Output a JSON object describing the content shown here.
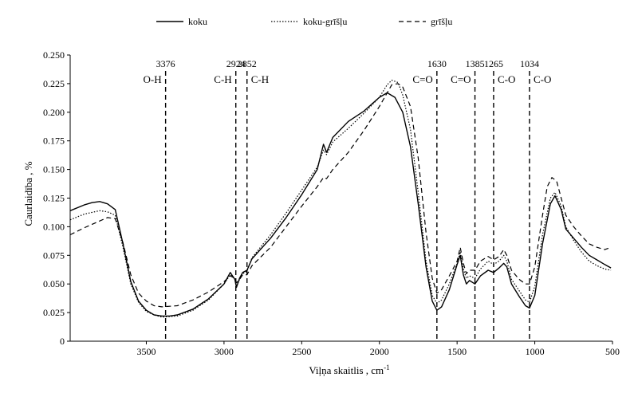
{
  "chart_data": {
    "type": "line",
    "xlabel": "Viļņa skaitlis , cm",
    "xlabel_sup": "-1",
    "ylabel": "Caurlaidība , %",
    "xlim": [
      3990,
      500
    ],
    "x_reversed": true,
    "ylim": [
      0,
      0.25
    ],
    "x_ticks": [
      3500,
      3000,
      2500,
      2000,
      1500,
      1000,
      500
    ],
    "y_ticks": [
      0,
      0.025,
      0.05,
      0.075,
      0.1,
      0.125,
      0.15,
      0.175,
      0.2,
      0.225,
      0.25
    ],
    "y_tick_labels": [
      "0",
      "0.025",
      "0.050",
      "0.075",
      "0.100",
      "0.125",
      "0.150",
      "0.175",
      "0.200",
      "0.225",
      "0.250"
    ],
    "grid": false,
    "legend_position": "top",
    "series": [
      {
        "name": "koku",
        "style": "solid",
        "points": [
          [
            3990,
            0.114
          ],
          [
            3900,
            0.119
          ],
          [
            3850,
            0.121
          ],
          [
            3800,
            0.122
          ],
          [
            3750,
            0.12
          ],
          [
            3700,
            0.115
          ],
          [
            3650,
            0.085
          ],
          [
            3600,
            0.052
          ],
          [
            3550,
            0.035
          ],
          [
            3500,
            0.027
          ],
          [
            3450,
            0.023
          ],
          [
            3400,
            0.022
          ],
          [
            3350,
            0.022
          ],
          [
            3300,
            0.023
          ],
          [
            3200,
            0.028
          ],
          [
            3100,
            0.037
          ],
          [
            3000,
            0.05
          ],
          [
            2960,
            0.06
          ],
          [
            2930,
            0.054
          ],
          [
            2920,
            0.047
          ],
          [
            2900,
            0.055
          ],
          [
            2880,
            0.06
          ],
          [
            2852,
            0.062
          ],
          [
            2820,
            0.072
          ],
          [
            2700,
            0.09
          ],
          [
            2600,
            0.108
          ],
          [
            2500,
            0.128
          ],
          [
            2400,
            0.15
          ],
          [
            2360,
            0.172
          ],
          [
            2340,
            0.165
          ],
          [
            2300,
            0.178
          ],
          [
            2200,
            0.192
          ],
          [
            2100,
            0.201
          ],
          [
            2000,
            0.213
          ],
          [
            1950,
            0.217
          ],
          [
            1900,
            0.213
          ],
          [
            1850,
            0.2
          ],
          [
            1800,
            0.17
          ],
          [
            1750,
            0.12
          ],
          [
            1700,
            0.065
          ],
          [
            1660,
            0.035
          ],
          [
            1630,
            0.027
          ],
          [
            1600,
            0.03
          ],
          [
            1550,
            0.045
          ],
          [
            1500,
            0.067
          ],
          [
            1480,
            0.075
          ],
          [
            1460,
            0.058
          ],
          [
            1440,
            0.05
          ],
          [
            1420,
            0.053
          ],
          [
            1385,
            0.05
          ],
          [
            1350,
            0.057
          ],
          [
            1300,
            0.062
          ],
          [
            1265,
            0.06
          ],
          [
            1230,
            0.064
          ],
          [
            1200,
            0.068
          ],
          [
            1180,
            0.065
          ],
          [
            1150,
            0.05
          ],
          [
            1100,
            0.039
          ],
          [
            1060,
            0.031
          ],
          [
            1034,
            0.029
          ],
          [
            1000,
            0.04
          ],
          [
            950,
            0.085
          ],
          [
            900,
            0.12
          ],
          [
            870,
            0.127
          ],
          [
            830,
            0.115
          ],
          [
            800,
            0.098
          ],
          [
            750,
            0.09
          ],
          [
            700,
            0.082
          ],
          [
            650,
            0.075
          ],
          [
            600,
            0.071
          ],
          [
            550,
            0.067
          ],
          [
            510,
            0.064
          ]
        ]
      },
      {
        "name": "koku-grīšļu",
        "style": "dotted",
        "points": [
          [
            3990,
            0.106
          ],
          [
            3900,
            0.111
          ],
          [
            3800,
            0.114
          ],
          [
            3750,
            0.113
          ],
          [
            3700,
            0.11
          ],
          [
            3650,
            0.082
          ],
          [
            3600,
            0.05
          ],
          [
            3550,
            0.034
          ],
          [
            3500,
            0.026
          ],
          [
            3450,
            0.023
          ],
          [
            3400,
            0.021
          ],
          [
            3300,
            0.022
          ],
          [
            3200,
            0.027
          ],
          [
            3100,
            0.036
          ],
          [
            3000,
            0.05
          ],
          [
            2960,
            0.058
          ],
          [
            2930,
            0.055
          ],
          [
            2920,
            0.048
          ],
          [
            2900,
            0.054
          ],
          [
            2880,
            0.059
          ],
          [
            2852,
            0.061
          ],
          [
            2820,
            0.073
          ],
          [
            2700,
            0.093
          ],
          [
            2600,
            0.112
          ],
          [
            2500,
            0.132
          ],
          [
            2400,
            0.152
          ],
          [
            2360,
            0.167
          ],
          [
            2340,
            0.163
          ],
          [
            2300,
            0.174
          ],
          [
            2200,
            0.186
          ],
          [
            2100,
            0.199
          ],
          [
            2000,
            0.213
          ],
          [
            1950,
            0.224
          ],
          [
            1920,
            0.228
          ],
          [
            1880,
            0.226
          ],
          [
            1850,
            0.215
          ],
          [
            1800,
            0.185
          ],
          [
            1750,
            0.13
          ],
          [
            1700,
            0.07
          ],
          [
            1660,
            0.04
          ],
          [
            1630,
            0.033
          ],
          [
            1600,
            0.036
          ],
          [
            1550,
            0.05
          ],
          [
            1500,
            0.068
          ],
          [
            1480,
            0.078
          ],
          [
            1460,
            0.063
          ],
          [
            1440,
            0.055
          ],
          [
            1420,
            0.057
          ],
          [
            1385,
            0.055
          ],
          [
            1350,
            0.063
          ],
          [
            1300,
            0.07
          ],
          [
            1265,
            0.067
          ],
          [
            1230,
            0.07
          ],
          [
            1200,
            0.075
          ],
          [
            1180,
            0.07
          ],
          [
            1150,
            0.054
          ],
          [
            1100,
            0.044
          ],
          [
            1060,
            0.036
          ],
          [
            1034,
            0.034
          ],
          [
            1000,
            0.048
          ],
          [
            950,
            0.093
          ],
          [
            900,
            0.125
          ],
          [
            870,
            0.13
          ],
          [
            830,
            0.118
          ],
          [
            800,
            0.1
          ],
          [
            750,
            0.088
          ],
          [
            700,
            0.078
          ],
          [
            650,
            0.07
          ],
          [
            600,
            0.066
          ],
          [
            550,
            0.063
          ],
          [
            510,
            0.062
          ]
        ]
      },
      {
        "name": "grīšļu",
        "style": "dashed",
        "points": [
          [
            3990,
            0.093
          ],
          [
            3900,
            0.099
          ],
          [
            3800,
            0.105
          ],
          [
            3750,
            0.108
          ],
          [
            3700,
            0.107
          ],
          [
            3650,
            0.086
          ],
          [
            3600,
            0.058
          ],
          [
            3550,
            0.042
          ],
          [
            3500,
            0.035
          ],
          [
            3450,
            0.031
          ],
          [
            3400,
            0.03
          ],
          [
            3300,
            0.031
          ],
          [
            3200,
            0.036
          ],
          [
            3100,
            0.043
          ],
          [
            3000,
            0.052
          ],
          [
            2960,
            0.057
          ],
          [
            2930,
            0.055
          ],
          [
            2920,
            0.051
          ],
          [
            2900,
            0.054
          ],
          [
            2880,
            0.058
          ],
          [
            2852,
            0.058
          ],
          [
            2820,
            0.066
          ],
          [
            2700,
            0.082
          ],
          [
            2600,
            0.1
          ],
          [
            2500,
            0.118
          ],
          [
            2400,
            0.135
          ],
          [
            2360,
            0.143
          ],
          [
            2340,
            0.142
          ],
          [
            2300,
            0.15
          ],
          [
            2200,
            0.165
          ],
          [
            2100,
            0.184
          ],
          [
            2000,
            0.205
          ],
          [
            1950,
            0.217
          ],
          [
            1920,
            0.224
          ],
          [
            1880,
            0.225
          ],
          [
            1850,
            0.222
          ],
          [
            1800,
            0.205
          ],
          [
            1750,
            0.16
          ],
          [
            1700,
            0.095
          ],
          [
            1660,
            0.055
          ],
          [
            1630,
            0.042
          ],
          [
            1600,
            0.045
          ],
          [
            1550,
            0.057
          ],
          [
            1500,
            0.07
          ],
          [
            1480,
            0.082
          ],
          [
            1460,
            0.068
          ],
          [
            1440,
            0.059
          ],
          [
            1420,
            0.062
          ],
          [
            1385,
            0.062
          ],
          [
            1350,
            0.07
          ],
          [
            1300,
            0.074
          ],
          [
            1265,
            0.071
          ],
          [
            1230,
            0.074
          ],
          [
            1200,
            0.08
          ],
          [
            1180,
            0.075
          ],
          [
            1150,
            0.062
          ],
          [
            1100,
            0.054
          ],
          [
            1060,
            0.05
          ],
          [
            1034,
            0.05
          ],
          [
            1000,
            0.065
          ],
          [
            950,
            0.11
          ],
          [
            920,
            0.135
          ],
          [
            890,
            0.143
          ],
          [
            860,
            0.14
          ],
          [
            830,
            0.125
          ],
          [
            800,
            0.11
          ],
          [
            750,
            0.1
          ],
          [
            700,
            0.092
          ],
          [
            650,
            0.085
          ],
          [
            600,
            0.082
          ],
          [
            550,
            0.08
          ],
          [
            510,
            0.082
          ]
        ]
      }
    ],
    "reference_lines": [
      {
        "x": 3376,
        "label": "3376",
        "band": "O-H",
        "band_side": "left"
      },
      {
        "x": 2924,
        "label": "2924",
        "band": "C-H",
        "band_side": "left"
      },
      {
        "x": 2852,
        "label": "2852",
        "band": "C-H",
        "band_side": "right"
      },
      {
        "x": 1630,
        "label": "1630",
        "band": "C=O",
        "band_side": "left"
      },
      {
        "x": 1385,
        "label": "1385",
        "band": "C=O",
        "band_side": "left"
      },
      {
        "x": 1265,
        "label": "1265",
        "band": "C-O",
        "band_side": "right"
      },
      {
        "x": 1034,
        "label": "1034",
        "band": "C-O",
        "band_side": "right"
      }
    ]
  }
}
